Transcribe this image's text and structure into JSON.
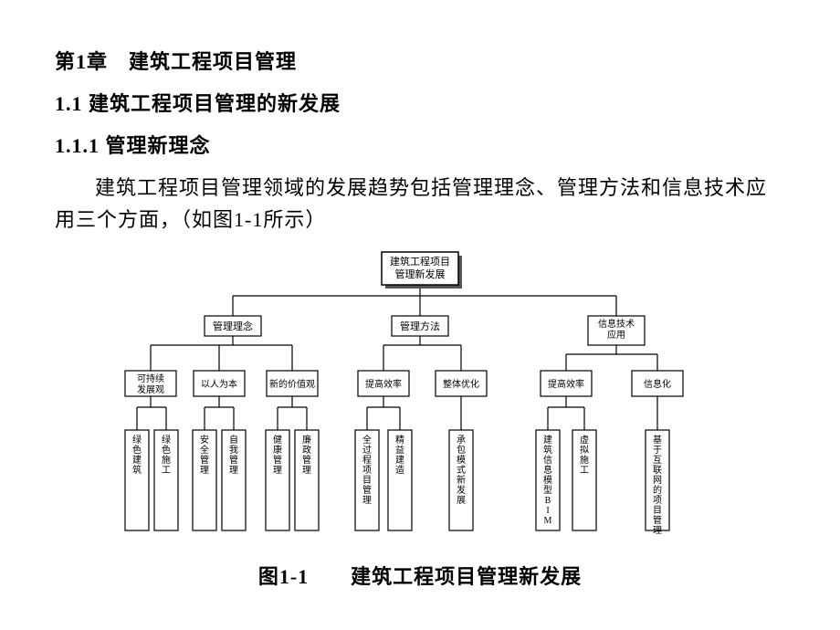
{
  "headings": {
    "h1": "第1章　建筑工程项目管理",
    "h2": "1.1 建筑工程项目管理的新发展",
    "h3": "1.1.1 管理新理念"
  },
  "paragraph": "建筑工程项目管理领域的发展趋势包括管理理念、管理方法和信息技术应用三个方面，（如图1-1所示）",
  "caption": "图1-1　　建筑工程项目管理新发展",
  "diagram": {
    "type": "tree",
    "background_color": "#ffffff",
    "stroke_color": "#000000",
    "text_color": "#000000",
    "font_family": "SimSun",
    "root": {
      "lines": [
        "建筑工程项目",
        "管理新发展"
      ],
      "shadow": true
    },
    "level1": [
      {
        "label": "管理理念"
      },
      {
        "label": "管理方法"
      },
      {
        "label": "信息技术应用",
        "lines": [
          "信息技术",
          "应用"
        ]
      }
    ],
    "level2": [
      {
        "parent": 0,
        "lines": [
          "可持续",
          "发展观"
        ]
      },
      {
        "parent": 0,
        "label": "以人为本"
      },
      {
        "parent": 0,
        "label": "新的价值观"
      },
      {
        "parent": 1,
        "label": "提高效率"
      },
      {
        "parent": 1,
        "label": "整体优化"
      },
      {
        "parent": 2,
        "label": "提高效率"
      },
      {
        "parent": 2,
        "label": "信息化"
      }
    ],
    "leaves": [
      {
        "parent": 0,
        "label": "绿色建筑"
      },
      {
        "parent": 0,
        "label": "绿色施工"
      },
      {
        "parent": 1,
        "label": "安全管理"
      },
      {
        "parent": 1,
        "label": "自我管理"
      },
      {
        "parent": 2,
        "label": "健康管理"
      },
      {
        "parent": 2,
        "label": "廉政管理"
      },
      {
        "parent": 3,
        "label": "全过程项目管理"
      },
      {
        "parent": 3,
        "label": "精益建造"
      },
      {
        "parent": 4,
        "label": "承包模式新发展"
      },
      {
        "parent": 5,
        "label": "建筑信息模型BIM"
      },
      {
        "parent": 5,
        "label": "虚拟施工"
      },
      {
        "parent": 6,
        "label": "基于互联网的项目管理"
      }
    ],
    "style": {
      "root_box": {
        "w": 84,
        "h": 36,
        "fontsize": 11
      },
      "l1_box": {
        "w": 62,
        "h": 22,
        "fontsize": 11
      },
      "l2_box": {
        "w": 54,
        "h": 26,
        "fontsize": 10
      },
      "leaf_box": {
        "w": 24,
        "h": 100,
        "fontsize": 10,
        "vertical": true
      },
      "stroke_width": 1.2
    }
  }
}
